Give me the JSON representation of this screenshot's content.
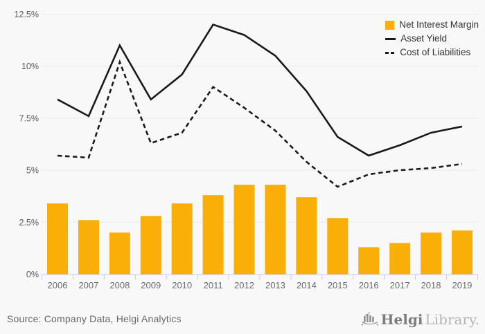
{
  "chart_data": {
    "type": "bar",
    "categories": [
      "2006",
      "2007",
      "2008",
      "2009",
      "2010",
      "2011",
      "2012",
      "2013",
      "2014",
      "2015",
      "2016",
      "2017",
      "2018",
      "2019"
    ],
    "series": [
      {
        "name": "Net Interest Margin",
        "type": "bar",
        "style": "solid",
        "values": [
          3.4,
          2.6,
          2.0,
          2.8,
          3.4,
          3.8,
          4.3,
          4.3,
          3.7,
          2.7,
          1.3,
          1.5,
          2.0,
          2.1
        ]
      },
      {
        "name": "Asset Yield",
        "type": "line",
        "style": "solid",
        "values": [
          8.4,
          7.6,
          11.0,
          8.4,
          9.6,
          12.0,
          11.5,
          10.5,
          8.8,
          6.6,
          5.7,
          6.2,
          6.8,
          7.1
        ]
      },
      {
        "name": "Cost of Liabilities",
        "type": "line",
        "style": "dashed",
        "values": [
          5.7,
          5.6,
          10.2,
          6.3,
          6.8,
          9.0,
          8.0,
          6.9,
          5.4,
          4.2,
          4.8,
          5.0,
          5.1,
          5.3
        ]
      }
    ],
    "title": "",
    "xlabel": "",
    "ylabel": "",
    "ylim": [
      0,
      12.5
    ],
    "ytick_values": [
      0,
      2.5,
      5,
      7.5,
      10,
      12.5
    ],
    "ytick_labels": [
      "0%",
      "2.5%",
      "5%",
      "7.5%",
      "10%",
      "12.5%"
    ],
    "grid": true,
    "legend_position": "top-right"
  },
  "footer": {
    "source": "Source: Company Data, Helgi Analytics",
    "logo": {
      "brand": "Helgi",
      "suffix": "Library."
    }
  },
  "colors": {
    "background": "#f8f8f8",
    "bar": "#F9AF08",
    "line": "#1a1a1a",
    "gridline": "#e9e9e9",
    "axis": "#c6cce4",
    "ytick_label": "#595959",
    "tick_label": "#6b6b6b",
    "legend_text": "#333333",
    "source_text": "#666666",
    "logo_brand": "#7d7d7d",
    "logo_suffix": "#b4b4b4",
    "logo_icon": "#8a8a8a"
  }
}
